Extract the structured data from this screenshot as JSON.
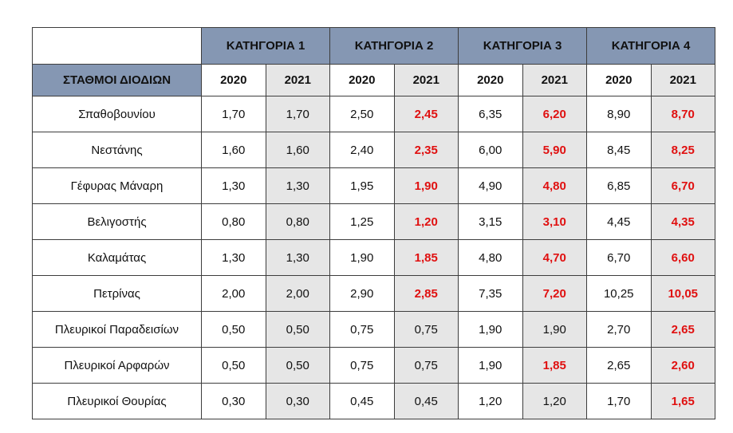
{
  "table": {
    "station_header": "ΣΤΑΘΜΟΙ ΔΙΟΔΙΩΝ",
    "categories": [
      "ΚΑΤΗΓΟΡΙΑ 1",
      "ΚΑΤΗΓΟΡΙΑ 2",
      "ΚΑΤΗΓΟΡΙΑ 3",
      "ΚΑΤΗΓΟΡΙΑ 4"
    ],
    "years": [
      "2020",
      "2021",
      "2020",
      "2021",
      "2020",
      "2021",
      "2020",
      "2021"
    ],
    "rows": [
      {
        "station": "Σπαθοβουνίου",
        "values": [
          "1,70",
          "1,70",
          "2,50",
          "2,45",
          "6,35",
          "6,20",
          "8,90",
          "8,70"
        ]
      },
      {
        "station": "Νεστάνης",
        "values": [
          "1,60",
          "1,60",
          "2,40",
          "2,35",
          "6,00",
          "5,90",
          "8,45",
          "8,25"
        ]
      },
      {
        "station": "Γέφυρας Μάναρη",
        "values": [
          "1,30",
          "1,30",
          "1,95",
          "1,90",
          "4,90",
          "4,80",
          "6,85",
          "6,70"
        ]
      },
      {
        "station": "Βελιγοστής",
        "values": [
          "0,80",
          "0,80",
          "1,25",
          "1,20",
          "3,15",
          "3,10",
          "4,45",
          "4,35"
        ]
      },
      {
        "station": "Καλαμάτας",
        "values": [
          "1,30",
          "1,30",
          "1,90",
          "1,85",
          "4,80",
          "4,70",
          "6,70",
          "6,60"
        ]
      },
      {
        "station": "Πετρίνας",
        "values": [
          "2,00",
          "2,00",
          "2,90",
          "2,85",
          "7,35",
          "7,20",
          "10,25",
          "10,05"
        ]
      },
      {
        "station": "Πλευρικοί Παραδεισίων",
        "values": [
          "0,50",
          "0,50",
          "0,75",
          "0,75",
          "1,90",
          "1,90",
          "2,70",
          "2,65"
        ]
      },
      {
        "station": "Πλευρικοί Αρφαρών",
        "values": [
          "0,50",
          "0,50",
          "0,75",
          "0,75",
          "1,90",
          "1,85",
          "2,65",
          "2,60"
        ]
      },
      {
        "station": "Πλευρικοί Θουρίας",
        "values": [
          "0,30",
          "0,30",
          "0,45",
          "0,45",
          "1,20",
          "1,20",
          "1,70",
          "1,65"
        ]
      }
    ]
  },
  "colors": {
    "header_fill": "#8597b3",
    "alt_column_fill": "#e6e6e6",
    "changed_value": "#e01010"
  }
}
